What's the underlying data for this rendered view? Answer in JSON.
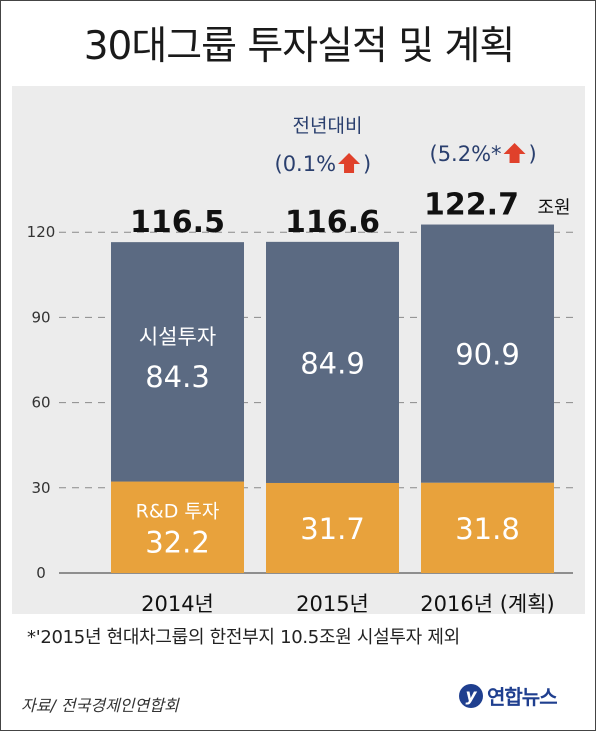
{
  "title": "30대그룹 투자실적 및 계획",
  "footnote": "*'2015년 현대차그룹의 한전부지 10.5조원 시설투자 제외",
  "source": "자료/ 전국경제인연합회",
  "logo": {
    "mark": "y",
    "text": "연합뉴스"
  },
  "chart_data": {
    "type": "bar",
    "stacked": true,
    "categories": [
      "2014년",
      "2015년",
      "2016년 (계획)"
    ],
    "series": [
      {
        "name": "R&D 투자",
        "values": [
          32.2,
          31.7,
          31.8
        ],
        "color": "#e8a23c"
      },
      {
        "name": "시설투자",
        "values": [
          84.3,
          84.9,
          90.9
        ],
        "color": "#5b6a82"
      }
    ],
    "totals": [
      "116.5",
      "116.6",
      "122.7"
    ],
    "total_unit": "조원",
    "yoy_caption": "전년대비",
    "yoy_changes": [
      "",
      "(0.1%",
      "(5.2%*"
    ],
    "yoy_close": ")",
    "ylim": [
      0,
      120
    ],
    "yticks": [
      0,
      30,
      60,
      90,
      120
    ],
    "grid": true,
    "up_arrow_color": "#e0412b"
  }
}
